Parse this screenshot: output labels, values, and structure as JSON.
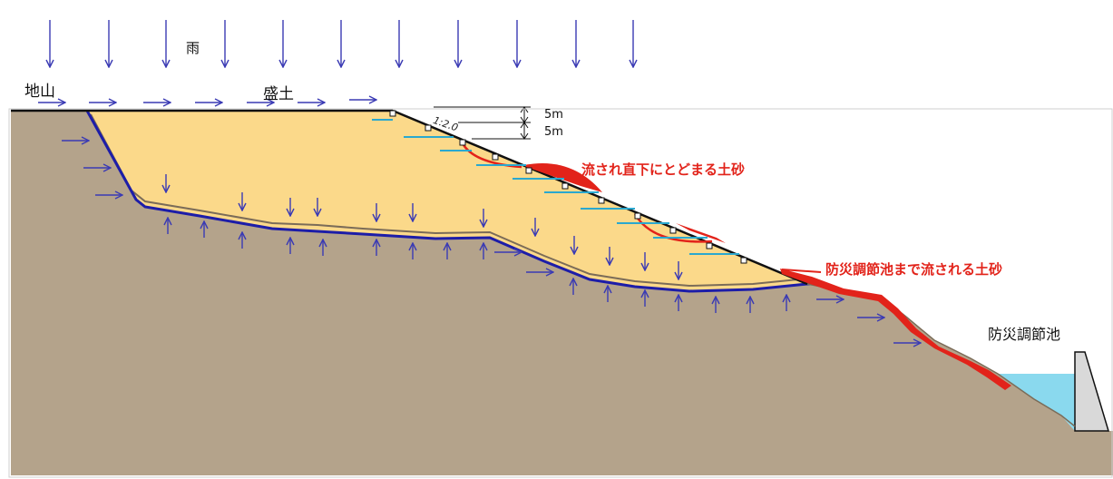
{
  "labels": {
    "rain": "雨",
    "bedrock": "地山",
    "fill": "盛土",
    "slope_ratio": "1:2.0",
    "height_top": "5m",
    "height_bottom": "5m",
    "sediment_local": "流され直下にとどまる土砂",
    "sediment_pond": "防災調節池まで流される土砂",
    "pond": "防災調節池"
  },
  "colors": {
    "ground": "#b4a38b",
    "fill": "#fbd98a",
    "water": "#8ad9ee",
    "dam": "#d9d9d9",
    "base_line": "#1d1da8",
    "arrow": "#3a3ab4",
    "sediment": "#e2231a",
    "berm_drain": "#2aa8cf",
    "outline": "#111111"
  }
}
